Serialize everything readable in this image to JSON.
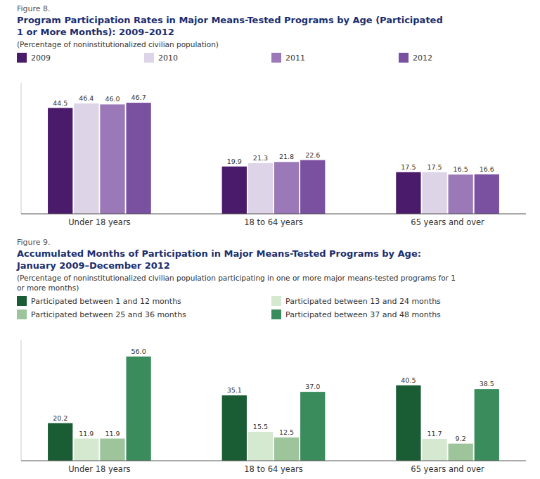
{
  "chart_data": [
    {
      "type": "bar",
      "annotations": [
        "Figure 8."
      ],
      "title": [
        "Program Participation Rates in Major Means-Tested Programs by Age (Participated",
        "1 or More Months): 2009–2012"
      ],
      "subtitle": [
        "(Percentage of noninstitutionalized civilian population)"
      ],
      "categories": [
        "Under 18 years",
        "18 to 64 years",
        "65 years and over"
      ],
      "series": [
        {
          "name": "2009",
          "color": "#4a1a6b",
          "values": [
            44.5,
            19.9,
            17.5
          ],
          "value_labels": [
            "44.5",
            "19.9",
            "17.5"
          ]
        },
        {
          "name": "2010",
          "color": "#ddd4e8",
          "values": [
            46.4,
            21.3,
            17.5
          ],
          "value_labels": [
            "46.4",
            "21.3",
            "17.5"
          ]
        },
        {
          "name": "2011",
          "color": "#9b78b8",
          "values": [
            46.0,
            21.8,
            16.5
          ],
          "value_labels": [
            "46.0",
            "21.8",
            "16.5"
          ]
        },
        {
          "name": "2012",
          "color": "#7a50a0",
          "values": [
            46.7,
            22.6,
            16.6
          ],
          "value_labels": [
            "46.7",
            "22.6",
            "16.6"
          ]
        }
      ],
      "ylim": [
        0,
        55
      ],
      "grid": false,
      "legend": "top",
      "data_labels": true,
      "tick_labels": "x"
    },
    {
      "type": "bar",
      "annotations": [
        "Figure 9."
      ],
      "title": [
        "Accumulated Months of Participation in Major Means-Tested Programs by Age:",
        "January 2009–December 2012"
      ],
      "subtitle": [
        "(Percentage of noninstitutionalized civilian population participating in one or more major means-tested programs for 1",
        "or more months)"
      ],
      "categories": [
        "Under 18 years",
        "18 to 64 years",
        "65 years and over"
      ],
      "series": [
        {
          "name": "Participated between 1 and 12 months",
          "color": "#1a5c34",
          "values": [
            20.2,
            35.1,
            40.5
          ],
          "value_labels": [
            "20.2",
            "35.1",
            "40.5"
          ]
        },
        {
          "name": "Participated between 13 and 24 months",
          "color": "#d5e8d0",
          "values": [
            11.9,
            15.5,
            11.7
          ],
          "value_labels": [
            "11.9",
            "15.5",
            "11.7"
          ]
        },
        {
          "name": "Participated between 25 and 36 months",
          "color": "#9dc49a",
          "values": [
            11.9,
            12.5,
            9.2
          ],
          "value_labels": [
            "11.9",
            "12.5",
            "9.2"
          ]
        },
        {
          "name": "Participated between 37 and 48 months",
          "color": "#3a8c5c",
          "values": [
            56.0,
            37.0,
            38.5
          ],
          "value_labels": [
            "56.0",
            "37.0",
            "38.5"
          ]
        }
      ],
      "ylim": [
        0,
        65
      ],
      "grid": false,
      "legend": "top",
      "data_labels": true,
      "tick_labels": "x"
    }
  ]
}
